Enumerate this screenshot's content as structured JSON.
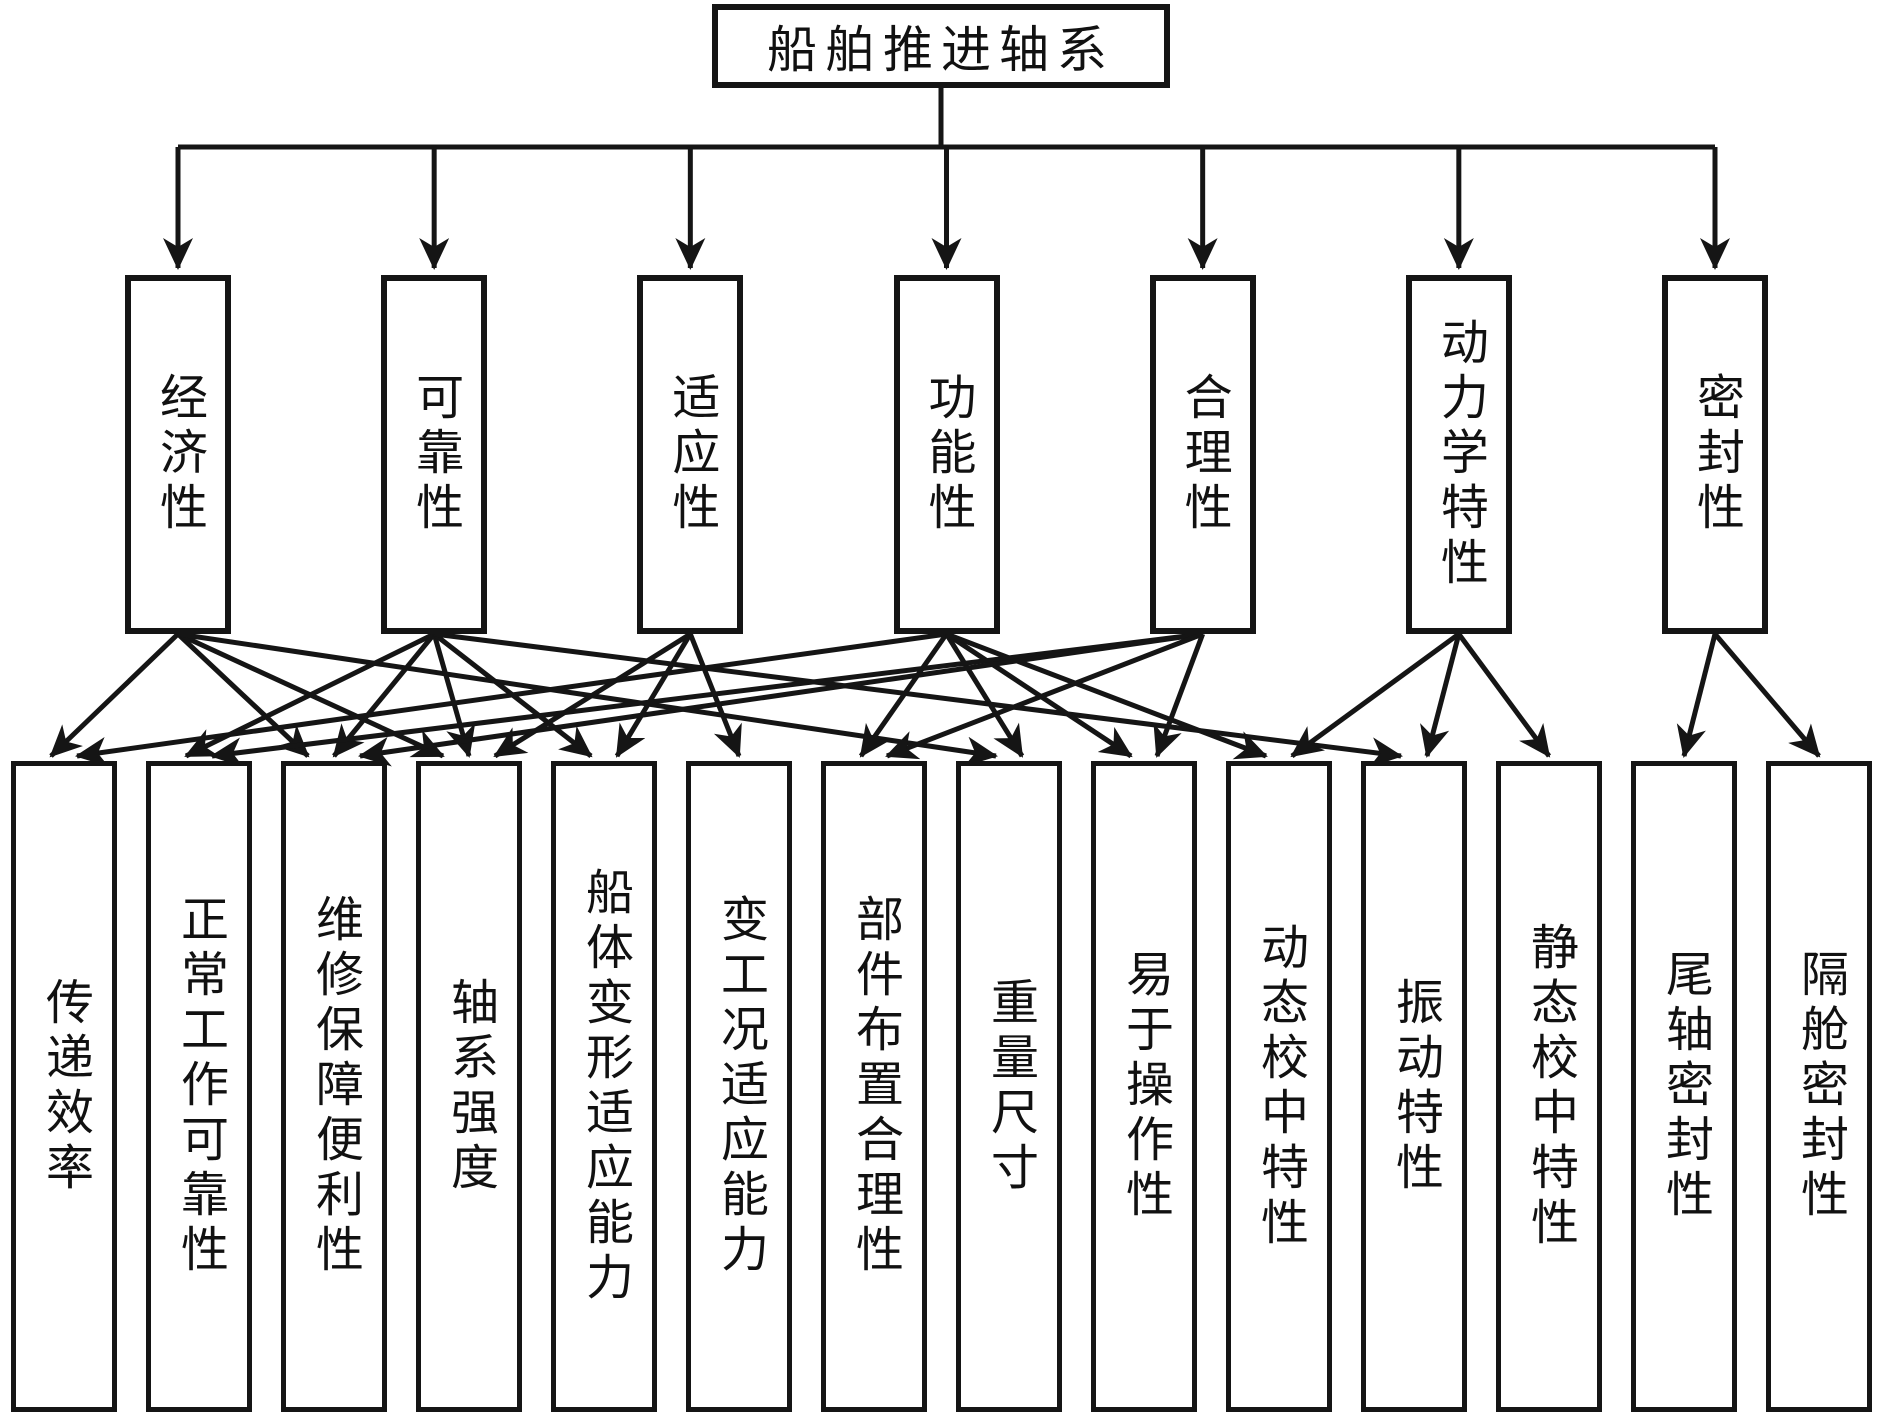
{
  "diagram": {
    "title": "船舶推进轴系",
    "criteria": [
      {
        "label": "经济性"
      },
      {
        "label": "可靠性"
      },
      {
        "label": "适应性"
      },
      {
        "label": "功能性"
      },
      {
        "label": "合理性"
      },
      {
        "label": "动力学特性"
      },
      {
        "label": "密封性"
      }
    ],
    "indicators": [
      {
        "label": "传递效率"
      },
      {
        "label": "正常工作可靠性"
      },
      {
        "label": "维修保障便利性"
      },
      {
        "label": "轴系强度"
      },
      {
        "label": "船体变形适应能力"
      },
      {
        "label": "变工况适应能力"
      },
      {
        "label": "部件布置合理性"
      },
      {
        "label": "重量尺寸"
      },
      {
        "label": "易于操作性"
      },
      {
        "label": "动态校中特性"
      },
      {
        "label": "振动特性"
      },
      {
        "label": "静态校中特性"
      },
      {
        "label": "尾轴密封性"
      },
      {
        "label": "隔舱密封性"
      }
    ],
    "edges": [
      {
        "from": 0,
        "to": 0
      },
      {
        "from": 0,
        "to": 2
      },
      {
        "from": 0,
        "to": 3
      },
      {
        "from": 0,
        "to": 7
      },
      {
        "from": 1,
        "to": 1
      },
      {
        "from": 1,
        "to": 2
      },
      {
        "from": 1,
        "to": 3
      },
      {
        "from": 1,
        "to": 4
      },
      {
        "from": 1,
        "to": 10
      },
      {
        "from": 2,
        "to": 3
      },
      {
        "from": 2,
        "to": 4
      },
      {
        "from": 2,
        "to": 5
      },
      {
        "from": 3,
        "to": 0
      },
      {
        "from": 3,
        "to": 6
      },
      {
        "from": 3,
        "to": 7
      },
      {
        "from": 3,
        "to": 8
      },
      {
        "from": 3,
        "to": 9
      },
      {
        "from": 4,
        "to": 1
      },
      {
        "from": 4,
        "to": 2
      },
      {
        "from": 4,
        "to": 6
      },
      {
        "from": 4,
        "to": 8
      },
      {
        "from": 5,
        "to": 9
      },
      {
        "from": 5,
        "to": 10
      },
      {
        "from": 5,
        "to": 11
      },
      {
        "from": 6,
        "to": 12
      },
      {
        "from": 6,
        "to": 13
      }
    ],
    "line_color": "#151515",
    "background_color": "#ffffff"
  }
}
